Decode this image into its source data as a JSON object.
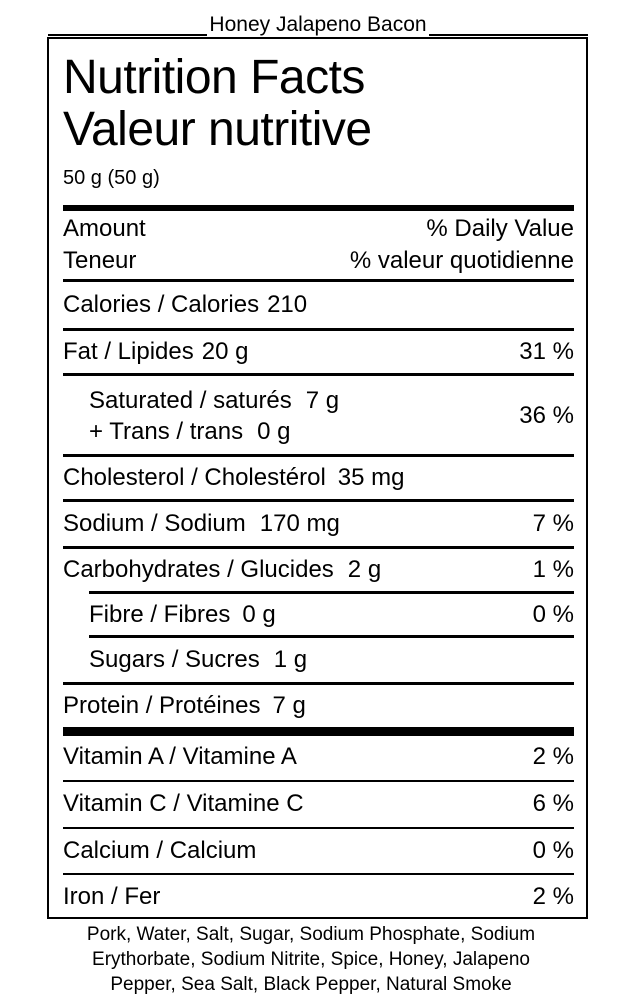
{
  "product_name": "Honey Jalapeno Bacon",
  "title_en": "Nutrition Facts",
  "title_fr": "Valeur nutritive",
  "serving": "50 g (50 g)",
  "header": {
    "amount": "Amount",
    "daily_value": "% Daily Value",
    "teneur": "Teneur",
    "valeur_quotidienne": "% valeur quotidienne"
  },
  "calories": {
    "label": "Calories / Calories",
    "value": "210"
  },
  "fat": {
    "label": "Fat / Lipides",
    "value": "20 g",
    "dv": "31 %"
  },
  "saturated": {
    "label": "Saturated / saturés",
    "value": "7 g"
  },
  "trans": {
    "label": "+ Trans / trans",
    "value": "0 g"
  },
  "sat_trans_dv": "36 %",
  "cholesterol": {
    "label": "Cholesterol / Cholestérol",
    "value": "35 mg"
  },
  "sodium": {
    "label": "Sodium / Sodium",
    "value": "170 mg",
    "dv": "7 %"
  },
  "carbs": {
    "label": "Carbohydrates / Glucides",
    "value": "2 g",
    "dv": "1 %"
  },
  "fibre": {
    "label": "Fibre / Fibres",
    "value": "0 g",
    "dv": "0 %"
  },
  "sugars": {
    "label": "Sugars / Sucres",
    "value": "1 g"
  },
  "protein": {
    "label": "Protein / Protéines",
    "value": "7 g"
  },
  "vitamin_a": {
    "label": "Vitamin A / Vitamine A",
    "dv": "2 %"
  },
  "vitamin_c": {
    "label": "Vitamin C / Vitamine C",
    "dv": "6 %"
  },
  "calcium": {
    "label": "Calcium / Calcium",
    "dv": "0 %"
  },
  "iron": {
    "label": "Iron / Fer",
    "dv": "2 %"
  },
  "ingredients": {
    "line1": "Pork, Water, Salt, Sugar, Sodium Phosphate, Sodium",
    "line2": "Erythorbate, Sodium Nitrite, Spice, Honey, Jalapeno",
    "line3": "Pepper, Sea Salt, Black Pepper, Natural Smoke"
  }
}
